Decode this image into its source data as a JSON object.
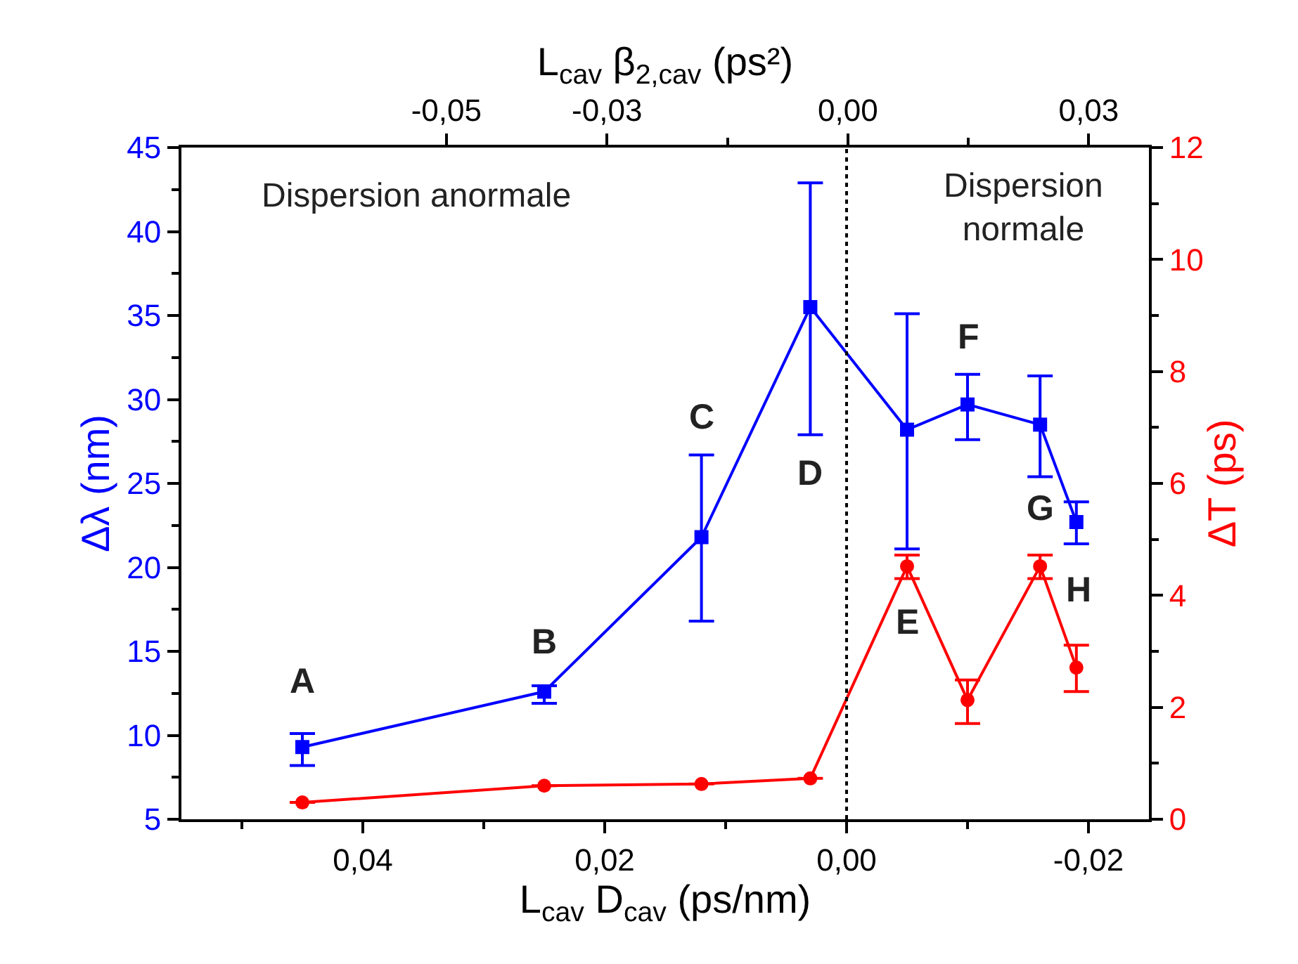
{
  "chart_data": {
    "type": "line",
    "xlabel": "L$_{cav}$ D$_{cav}$ (ps/nm)",
    "x2label": "L$_{cav}$ β$_{2,cav}$ (ps²)",
    "ylabel": "Δλ (nm)",
    "y2label": "ΔT (ps)",
    "xlim": [
      0.055,
      -0.025
    ],
    "xticks": [
      {
        "value": 0.05,
        "label": null
      },
      {
        "value": 0.04,
        "label": "0,04"
      },
      {
        "value": 0.03,
        "label": null
      },
      {
        "value": 0.02,
        "label": "0,02"
      },
      {
        "value": 0.01,
        "label": null
      },
      {
        "value": 0.0,
        "label": "0,00"
      },
      {
        "value": -0.01,
        "label": null
      },
      {
        "value": -0.02,
        "label": "-0,02"
      }
    ],
    "x2lim": [
      -0.083,
      0.0375
    ],
    "x2ticks": [
      {
        "value": -0.05,
        "label": "-0,05"
      },
      {
        "value": -0.03,
        "label": "-0,03"
      },
      {
        "value": -0.015,
        "label": null
      },
      {
        "value": 0.0,
        "label": "0,00"
      },
      {
        "value": 0.015,
        "label": null
      },
      {
        "value": 0.03,
        "label": "0,03"
      }
    ],
    "ylim": [
      5,
      45
    ],
    "yticks": [
      5,
      10,
      15,
      20,
      25,
      30,
      35,
      40,
      45
    ],
    "y2lim": [
      0,
      12
    ],
    "y2ticks": [
      0,
      2,
      4,
      6,
      8,
      10,
      12
    ],
    "x": [
      0.045,
      0.025,
      0.012,
      0.003,
      -0.005,
      -0.01,
      -0.016,
      -0.019
    ],
    "series": [
      {
        "color": "#0000ff",
        "marker": "square",
        "values": [
          9.3,
          12.6,
          21.8,
          35.5,
          28.2,
          29.7,
          28.5,
          22.7
        ],
        "errors": [
          [
            8.2,
            10.1
          ],
          [
            11.9,
            12.95
          ],
          [
            16.8,
            26.7
          ],
          [
            27.9,
            42.9
          ],
          [
            21.1,
            35.1
          ],
          [
            27.6,
            31.5
          ],
          [
            25.4,
            31.4
          ],
          [
            21.4,
            23.9
          ]
        ]
      },
      {
        "color": "#ff0000",
        "marker": "circle",
        "axis": "y2",
        "values": [
          0.3,
          0.6,
          0.63,
          0.73,
          4.52,
          2.13,
          4.52,
          2.71
        ],
        "errors": [
          null,
          null,
          null,
          null,
          [
            4.3,
            4.72
          ],
          [
            1.71,
            2.49
          ],
          [
            4.3,
            4.72
          ],
          [
            2.28,
            3.11
          ]
        ]
      }
    ],
    "ref_lines": [
      {
        "axis": "x",
        "value": 0.0,
        "color": "#000000",
        "line_style": "dotted"
      }
    ],
    "annotations": [
      {
        "text": "A",
        "x": 0.045,
        "y": 9.3
      },
      {
        "text": "B",
        "x": 0.025,
        "y": 12.6
      },
      {
        "text": "C",
        "x": 0.012,
        "y": 21.8
      },
      {
        "text": "D",
        "x": 0.003,
        "y": 27.9
      },
      {
        "text": "E",
        "x": -0.005,
        "y": 21.1
      },
      {
        "text": "F",
        "x": -0.01,
        "y": 29.7
      },
      {
        "text": "G",
        "x": -0.016,
        "y": 28.5
      },
      {
        "text": "H",
        "x": -0.019,
        "y": 22.7
      },
      "Dispersion anormale",
      "Dispersion\nnormale"
    ],
    "legend": false
  }
}
